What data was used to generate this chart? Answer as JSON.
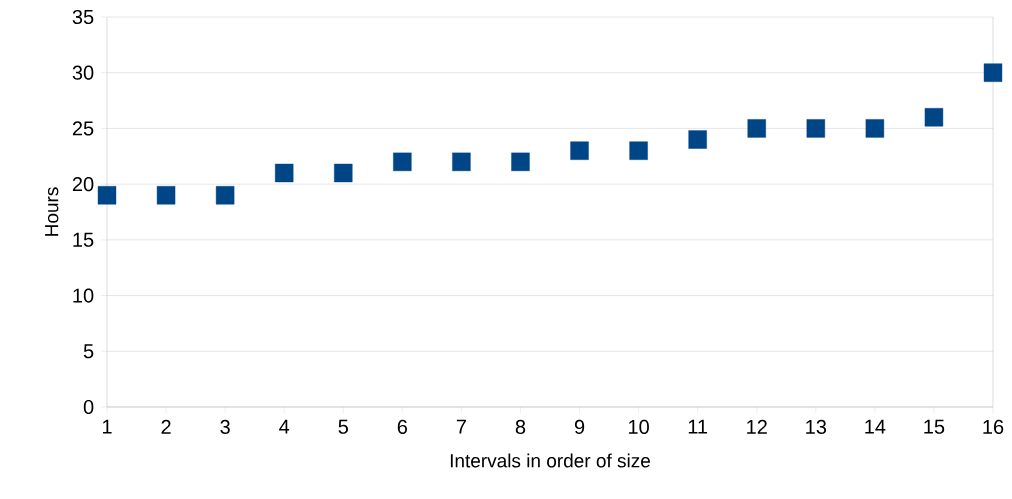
{
  "chart_data": {
    "type": "scatter",
    "xlabel": "Intervals in order of size",
    "ylabel": "Hours",
    "x": [
      1,
      2,
      3,
      4,
      5,
      6,
      7,
      8,
      9,
      10,
      11,
      12,
      13,
      14,
      15,
      16
    ],
    "values": [
      19,
      19,
      19,
      21,
      21,
      22,
      22,
      22,
      23,
      23,
      24,
      25,
      25,
      25,
      26,
      30
    ],
    "color": "#004586",
    "marker": "square",
    "xlim": [
      1,
      16
    ],
    "xticks": [
      1,
      2,
      3,
      4,
      5,
      6,
      7,
      8,
      9,
      10,
      11,
      12,
      13,
      14,
      15,
      16
    ],
    "ylim": [
      0,
      35
    ],
    "yticks": [
      0,
      5,
      10,
      15,
      20,
      25,
      30,
      35
    ],
    "grid": "y"
  }
}
